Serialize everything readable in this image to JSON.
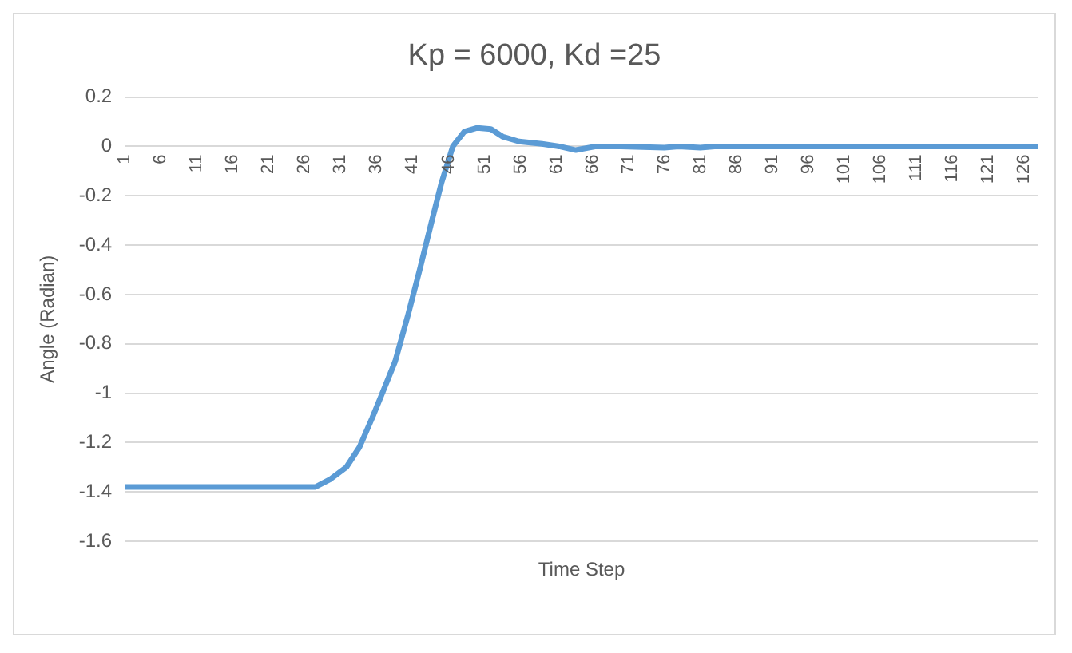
{
  "chart_data": {
    "type": "line",
    "title": "Kp = 6000, Kd =25",
    "xlabel": "Time Step",
    "ylabel": "Angle (Radian)",
    "x": [
      1,
      10,
      20,
      27.5,
      29.5,
      31.8,
      33.6,
      35.4,
      36.8,
      38.6,
      40.4,
      42,
      43.7,
      45,
      46.6,
      48.2,
      50,
      51.9,
      53.5,
      55.8,
      59,
      61.4,
      63.7,
      66.5,
      70,
      76,
      78,
      81,
      83,
      90,
      100,
      110,
      120,
      128
    ],
    "series": [
      {
        "color": "#5b9bd5",
        "values": [
          -1.38,
          -1.38,
          -1.38,
          -1.38,
          -1.35,
          -1.3,
          -1.22,
          -1.1,
          -1.0,
          -0.87,
          -0.68,
          -0.5,
          -0.3,
          -0.15,
          0,
          0.06,
          0.075,
          0.07,
          0.04,
          0.02,
          0.01,
          0,
          -0.015,
          0,
          0,
          -0.005,
          0,
          -0.005,
          0,
          0,
          0,
          0,
          0,
          0
        ]
      }
    ],
    "xlim": [
      1,
      128
    ],
    "xticks": [
      1,
      6,
      11,
      16,
      21,
      26,
      31,
      36,
      41,
      46,
      51,
      56,
      61,
      66,
      71,
      76,
      81,
      86,
      91,
      96,
      101,
      106,
      111,
      116,
      121,
      126
    ],
    "ylim": [
      -1.6,
      0.2
    ],
    "yticks": [
      0.2,
      0,
      -0.2,
      -0.4,
      -0.6,
      -0.8,
      -1,
      -1.2,
      -1.4,
      -1.6
    ],
    "grid": "y",
    "legend": false,
    "marker": "none",
    "line_style": "solid"
  }
}
